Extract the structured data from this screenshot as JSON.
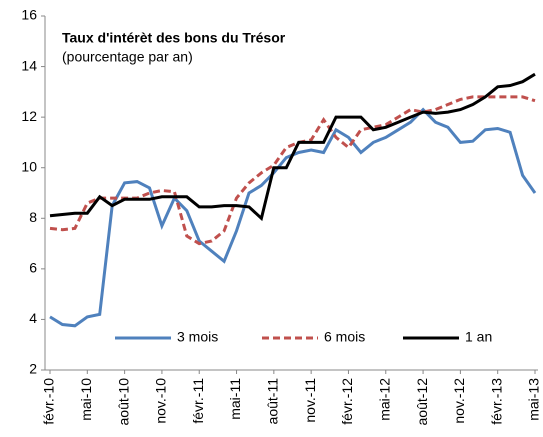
{
  "chart_data": {
    "type": "line",
    "title": "Taux d'intérèt des bons du Trésor",
    "subtitle": "(pourcentage par an)",
    "categories": [
      "févr.-10",
      null,
      null,
      "mai-10",
      null,
      null,
      "août-10",
      null,
      null,
      "nov.-10",
      null,
      null,
      "févr.-11",
      null,
      null,
      "mai-11",
      null,
      null,
      "août-11",
      null,
      null,
      "nov.-11",
      null,
      null,
      "févr.-12",
      null,
      null,
      "mai-12",
      null,
      null,
      "août-12",
      null,
      null,
      "nov.-12",
      null,
      null,
      "févr.-13",
      null,
      null,
      "mai-13"
    ],
    "series": [
      {
        "name": "3 mois",
        "color": "#4f81bd",
        "dash": false,
        "values": [
          4.1,
          3.8,
          3.75,
          4.1,
          4.2,
          8.5,
          9.4,
          9.45,
          9.2,
          7.7,
          8.8,
          8.3,
          7.1,
          6.7,
          6.3,
          7.5,
          9.0,
          9.3,
          9.8,
          10.4,
          10.6,
          10.7,
          10.6,
          11.5,
          11.2,
          10.6,
          11.0,
          11.2,
          11.5,
          11.8,
          12.3,
          11.8,
          11.6,
          11.0,
          11.05,
          11.5,
          11.55,
          11.4,
          9.7,
          9.0
        ]
      },
      {
        "name": "6 mois",
        "color": "#c0504d",
        "dash": true,
        "values": [
          7.6,
          7.55,
          7.6,
          8.6,
          8.8,
          8.8,
          8.8,
          8.8,
          9.0,
          9.1,
          9.05,
          7.3,
          7.0,
          7.1,
          7.5,
          8.8,
          9.4,
          9.8,
          10.1,
          10.8,
          11.0,
          11.1,
          11.9,
          11.2,
          10.8,
          11.5,
          11.6,
          11.7,
          12.0,
          12.3,
          12.2,
          12.3,
          12.5,
          12.7,
          12.8,
          12.8,
          12.8,
          12.8,
          12.8,
          12.65
        ]
      },
      {
        "name": "1 an",
        "color": "#000000",
        "dash": false,
        "values": [
          8.1,
          8.15,
          8.2,
          8.2,
          8.85,
          8.5,
          8.75,
          8.75,
          8.75,
          8.85,
          8.85,
          8.85,
          8.45,
          8.45,
          8.5,
          8.5,
          8.45,
          8.0,
          10.0,
          10.0,
          11.0,
          11.0,
          11.0,
          12.0,
          12.0,
          12.0,
          11.5,
          11.6,
          11.8,
          12.0,
          12.2,
          12.15,
          12.2,
          12.3,
          12.5,
          12.8,
          13.2,
          13.25,
          13.4,
          13.7
        ]
      }
    ],
    "ylim": [
      2,
      16
    ],
    "yticks": [
      2,
      4,
      6,
      8,
      10,
      12,
      14,
      16
    ],
    "grid": false,
    "legend": "bottom"
  }
}
